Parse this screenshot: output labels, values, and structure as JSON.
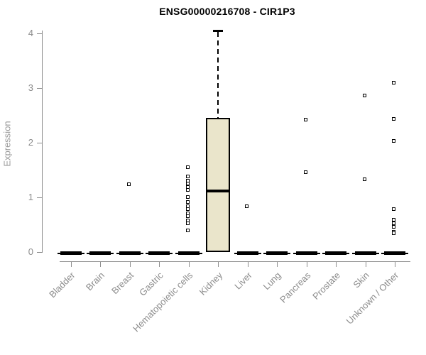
{
  "chart_data": {
    "type": "boxplot",
    "title": "ENSG00000216708 - CIR1P3",
    "xlabel": "",
    "ylabel": "Expression",
    "ylim": [
      0,
      4.1
    ],
    "yticks": [
      0,
      1,
      2,
      3,
      4
    ],
    "grid": false,
    "legend": null,
    "categories": [
      "Bladder",
      "Brain",
      "Breast",
      "Gastric",
      "Hematopoietic cells",
      "Kidney",
      "Liver",
      "Lung",
      "Pancreas",
      "Prostate",
      "Skin",
      "Unknown / Other"
    ],
    "boxes": [
      {
        "category": "Bladder",
        "q1": 0,
        "median": 0,
        "q3": 0,
        "whisker_low": 0,
        "whisker_high": 0,
        "outliers": []
      },
      {
        "category": "Brain",
        "q1": 0,
        "median": 0,
        "q3": 0,
        "whisker_low": 0,
        "whisker_high": 0,
        "outliers": []
      },
      {
        "category": "Breast",
        "q1": 0,
        "median": 0,
        "q3": 0,
        "whisker_low": 0,
        "whisker_high": 0,
        "outliers": [
          1.24
        ]
      },
      {
        "category": "Gastric",
        "q1": 0,
        "median": 0,
        "q3": 0,
        "whisker_low": 0,
        "whisker_high": 0,
        "outliers": []
      },
      {
        "category": "Hematopoietic cells",
        "q1": 0,
        "median": 0,
        "q3": 0,
        "whisker_low": 0,
        "whisker_high": 0,
        "outliers": [
          1.55,
          1.38,
          1.31,
          1.25,
          1.19,
          1.13,
          1.01,
          0.91,
          0.84,
          0.78,
          0.71,
          0.65,
          0.58,
          0.52,
          0.39
        ]
      },
      {
        "category": "Kidney",
        "q1": 0,
        "median": 1.12,
        "q3": 2.46,
        "whisker_low": 0,
        "whisker_high": 4.05,
        "outliers": []
      },
      {
        "category": "Liver",
        "q1": 0,
        "median": 0,
        "q3": 0,
        "whisker_low": 0,
        "whisker_high": 0,
        "outliers": [
          0.84
        ]
      },
      {
        "category": "Lung",
        "q1": 0,
        "median": 0,
        "q3": 0,
        "whisker_low": 0,
        "whisker_high": 0,
        "outliers": []
      },
      {
        "category": "Pancreas",
        "q1": 0,
        "median": 0,
        "q3": 0,
        "whisker_low": 0,
        "whisker_high": 0,
        "outliers": [
          2.42,
          1.46
        ]
      },
      {
        "category": "Prostate",
        "q1": 0,
        "median": 0,
        "q3": 0,
        "whisker_low": 0,
        "whisker_high": 0,
        "outliers": []
      },
      {
        "category": "Skin",
        "q1": 0,
        "median": 0,
        "q3": 0,
        "whisker_low": 0,
        "whisker_high": 0,
        "outliers": [
          2.87,
          1.33
        ]
      },
      {
        "category": "Unknown / Other",
        "q1": 0,
        "median": 0,
        "q3": 0,
        "whisker_low": 0,
        "whisker_high": 0,
        "outliers": [
          3.1,
          2.43,
          2.03,
          0.79,
          0.59,
          0.52,
          0.46,
          0.37,
          0.34
        ]
      }
    ],
    "colors": {
      "background": "#ffffff",
      "box_fill": "#EAE5CB",
      "box_border": "#000000",
      "median": "#000000",
      "outlier_stroke": "#000000",
      "axis_line": "#8c8c8c",
      "tick_label": "#8c8c8c",
      "title": "#000000"
    }
  }
}
